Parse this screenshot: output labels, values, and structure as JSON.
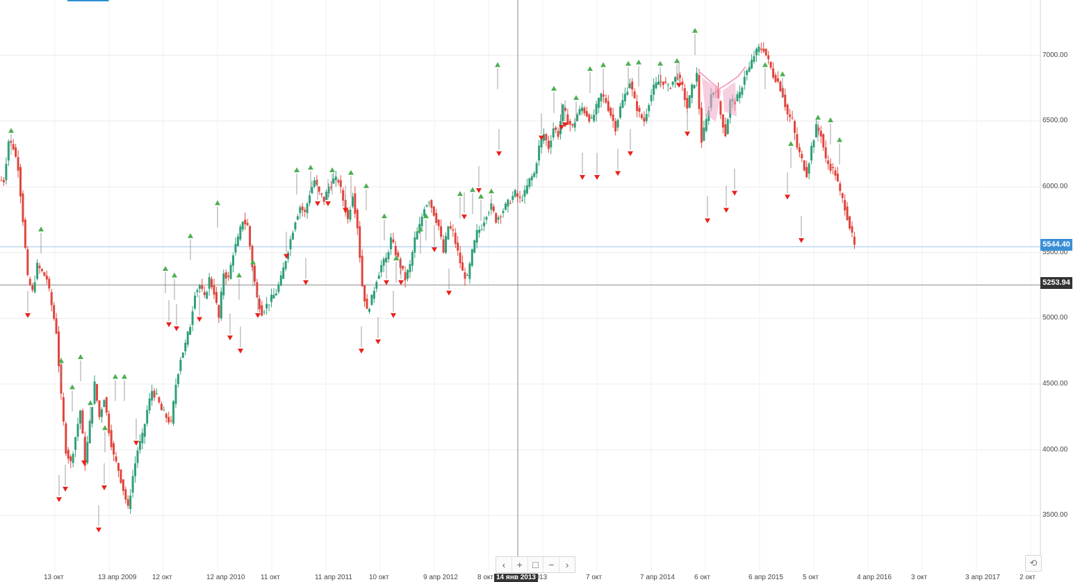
{
  "chart_data": {
    "type": "candlestick",
    "y_ticks": [
      "7000.00",
      "6500.00",
      "6000.00",
      "5500.00",
      "5000.00",
      "4500.00",
      "4000.00",
      "3500.00"
    ],
    "ylim": [
      3080,
      7420
    ],
    "x_ticks": [
      "13 окт",
      "13 апр 2009",
      "12 окт",
      "12 апр 2010",
      "11 окт",
      "11 апр 2011",
      "10 окт",
      "9 апр 2012",
      "8 окт",
      "2013",
      "7 окт",
      "7 апр 2014",
      "6 окт",
      "6 апр 2015",
      "5 окт",
      "4 апр 2016",
      "3 окт",
      "3 апр 2017",
      "2 окт"
    ],
    "last_price": "5544.40",
    "crosshair_price": "5253.94",
    "crosshair_date": "14 янв 2013",
    "grid": true,
    "series": [
      {
        "values": [
          6050,
          6350,
          6300,
          6150,
          5750,
          5300,
          5200,
          5400,
          5350,
          5300,
          5100,
          4900,
          4400,
          4000,
          3900,
          4100,
          4300,
          3900,
          4200,
          4500,
          4250,
          4400,
          4150,
          3950,
          3850,
          3700,
          3550,
          3800,
          4000,
          4100,
          4300,
          4450,
          4400,
          4300,
          4250,
          4200,
          4500,
          4700,
          4800,
          4950,
          5200,
          5250,
          5150,
          5300,
          5200,
          5000,
          5350,
          5300,
          5500,
          5600,
          5750,
          5700,
          5400,
          5150,
          5050,
          5100,
          5150,
          5200,
          5300,
          5450,
          5600,
          5750,
          5850,
          5800,
          5950,
          6050,
          5950,
          5900,
          6000,
          6050,
          6050,
          5900,
          5750,
          5950,
          5700,
          5250,
          5050,
          5150,
          5300,
          5400,
          5450,
          5600,
          5500,
          5400,
          5300,
          5400,
          5600,
          5700,
          5850,
          5900,
          5800,
          5700,
          5500,
          5700,
          5650,
          5500,
          5350,
          5300,
          5500,
          5650,
          5700,
          5800,
          5850,
          5750,
          5800,
          5850,
          5900,
          5950,
          5900,
          5950,
          6050,
          6100,
          6300,
          6400,
          6300,
          6450,
          6400,
          6600,
          6500,
          6450,
          6550,
          6600,
          6550,
          6500,
          6600,
          6700,
          6650,
          6550,
          6450,
          6600,
          6700,
          6800,
          6650,
          6550,
          6500,
          6650,
          6750,
          6800,
          6800,
          6750,
          6800,
          6850,
          6750,
          6600,
          6750,
          6850,
          6350,
          6500,
          6700,
          6750,
          6550,
          6400,
          6650,
          6650,
          6700,
          6850,
          6900,
          7000,
          7050,
          7050,
          6950,
          6850,
          6800,
          6700,
          6550,
          6500,
          6300,
          6200,
          6100,
          6300,
          6450,
          6400,
          6200,
          6150,
          6100,
          5950,
          5850,
          5700,
          5544
        ]
      }
    ],
    "signals": {
      "up": [
        "6400",
        "5650",
        "4650",
        "4450",
        "4680",
        "4330",
        "4140",
        "4530",
        "4530",
        "5350",
        "5300",
        "5600",
        "5850",
        "5300",
        "5400",
        "6100",
        "6120",
        "6100",
        "6080",
        "5980",
        "5750",
        "5430",
        "5650",
        "5750",
        "5920",
        "5950",
        "5900",
        "5940",
        "6900",
        "6720",
        "6650",
        "6870",
        "6900",
        "6910",
        "6920",
        "6910",
        "6930",
        "7160",
        "6900",
        "6830",
        "6300",
        "6500",
        "6480",
        "6330"
      ],
      "down": [
        "5050",
        "3650",
        "3730",
        "3930",
        "3420",
        "3740",
        "4080",
        "4980",
        "4950",
        "5020",
        "4880",
        "4780",
        "5050",
        "5500",
        "5300",
        "5900",
        "5900",
        "5850",
        "4780",
        "4850",
        "5300",
        "5300",
        "5050",
        "5550",
        "5220",
        "5800",
        "6000",
        "6280",
        "6400",
        "6480",
        "6500",
        "6100",
        "6100",
        "6130",
        "6280",
        "6800",
        "6430",
        "5770",
        "5850",
        "5980",
        "5950",
        "5620"
      ]
    },
    "drawing": "pink butterfly/harmonic pattern marker near the 2014 peak"
  },
  "colors": {
    "up": "#2e9f78",
    "down": "#e0453c",
    "signal_up": "#4caf50",
    "signal_down": "#e8211b",
    "last_price_tag": "#3a8fd6",
    "crosshair_tag": "#333333",
    "pattern": "#f3a6c8"
  },
  "nav": {
    "buttons": [
      "‹",
      "+",
      "□",
      "−",
      "›"
    ],
    "reset_icon": "⟲"
  }
}
